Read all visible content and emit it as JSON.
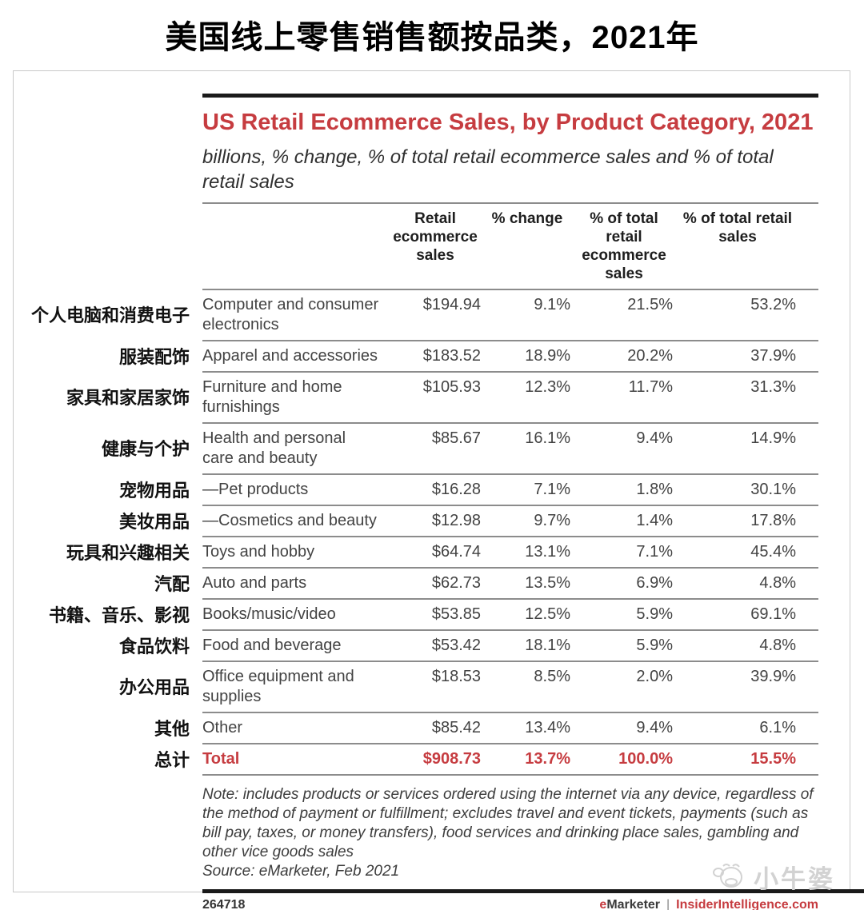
{
  "page": {
    "title": "美国线上零售销售额按品类，2021年"
  },
  "colors": {
    "accent_red": "#c63c40",
    "bar_black": "#1a1a1a",
    "line_gray": "#8c8c8c"
  },
  "chart_data": {
    "type": "table",
    "title": "US Retail Ecommerce Sales, by Product Category, 2021",
    "subtitle": "billions, % change, % of total retail ecommerce sales and % of total retail sales",
    "columns": [
      "Retail ecommerce sales",
      "% change",
      "% of total retail ecommerce sales",
      "% of total retail sales"
    ],
    "rows": [
      {
        "label_cn": "个人电脑和消费电子",
        "category": "Computer and consumer electronics",
        "retail_ecommerce_sales": "$194.94",
        "pct_change": "9.1%",
        "pct_of_total_retail_ecommerce_sales": "21.5%",
        "pct_of_total_retail_sales": "53.2%"
      },
      {
        "label_cn": "服装配饰",
        "category": "Apparel and accessories",
        "retail_ecommerce_sales": "$183.52",
        "pct_change": "18.9%",
        "pct_of_total_retail_ecommerce_sales": "20.2%",
        "pct_of_total_retail_sales": "37.9%"
      },
      {
        "label_cn": "家具和家居家饰",
        "category": "Furniture and home furnishings",
        "retail_ecommerce_sales": "$105.93",
        "pct_change": "12.3%",
        "pct_of_total_retail_ecommerce_sales": "11.7%",
        "pct_of_total_retail_sales": "31.3%"
      },
      {
        "label_cn": "健康与个护",
        "category": "Health and personal care and beauty",
        "retail_ecommerce_sales": "$85.67",
        "pct_change": "16.1%",
        "pct_of_total_retail_ecommerce_sales": "9.4%",
        "pct_of_total_retail_sales": "14.9%"
      },
      {
        "label_cn": "宠物用品",
        "category": "—Pet products",
        "retail_ecommerce_sales": "$16.28",
        "pct_change": "7.1%",
        "pct_of_total_retail_ecommerce_sales": "1.8%",
        "pct_of_total_retail_sales": "30.1%"
      },
      {
        "label_cn": "美妆用品",
        "category": "—Cosmetics and beauty",
        "retail_ecommerce_sales": "$12.98",
        "pct_change": "9.7%",
        "pct_of_total_retail_ecommerce_sales": "1.4%",
        "pct_of_total_retail_sales": "17.8%"
      },
      {
        "label_cn": "玩具和兴趣相关",
        "category": "Toys and hobby",
        "retail_ecommerce_sales": "$64.74",
        "pct_change": "13.1%",
        "pct_of_total_retail_ecommerce_sales": "7.1%",
        "pct_of_total_retail_sales": "45.4%"
      },
      {
        "label_cn": "汽配",
        "category": "Auto and parts",
        "retail_ecommerce_sales": "$62.73",
        "pct_change": "13.5%",
        "pct_of_total_retail_ecommerce_sales": "6.9%",
        "pct_of_total_retail_sales": "4.8%"
      },
      {
        "label_cn": "书籍、音乐、影视",
        "category": "Books/music/video",
        "retail_ecommerce_sales": "$53.85",
        "pct_change": "12.5%",
        "pct_of_total_retail_ecommerce_sales": "5.9%",
        "pct_of_total_retail_sales": "69.1%"
      },
      {
        "label_cn": "食品饮料",
        "category": "Food and beverage",
        "retail_ecommerce_sales": "$53.42",
        "pct_change": "18.1%",
        "pct_of_total_retail_ecommerce_sales": "5.9%",
        "pct_of_total_retail_sales": "4.8%"
      },
      {
        "label_cn": "办公用品",
        "category": "Office equipment and supplies",
        "retail_ecommerce_sales": "$18.53",
        "pct_change": "8.5%",
        "pct_of_total_retail_ecommerce_sales": "2.0%",
        "pct_of_total_retail_sales": "39.9%"
      },
      {
        "label_cn": "其他",
        "category": "Other",
        "retail_ecommerce_sales": "$85.42",
        "pct_change": "13.4%",
        "pct_of_total_retail_ecommerce_sales": "9.4%",
        "pct_of_total_retail_sales": "6.1%"
      },
      {
        "label_cn": "总计",
        "category": "Total",
        "retail_ecommerce_sales": "$908.73",
        "pct_change": "13.7%",
        "pct_of_total_retail_ecommerce_sales": "100.0%",
        "pct_of_total_retail_sales": "15.5%",
        "is_total": true
      }
    ]
  },
  "note": {
    "text": "Note: includes products or services ordered using the internet via any device, regardless of the method of payment or fulfillment; excludes travel and event tickets, payments (such as bill pay, taxes, or money transfers), food services and drinking place sales, gambling and other vice goods sales",
    "source": "Source: eMarketer, Feb 2021"
  },
  "footer": {
    "chart_id": "264718",
    "brand_prefix": "e",
    "brand_name": "Marketer",
    "separator": "|",
    "site": "InsiderIntelligence.com"
  },
  "watermark": {
    "text": "小牛婆"
  }
}
